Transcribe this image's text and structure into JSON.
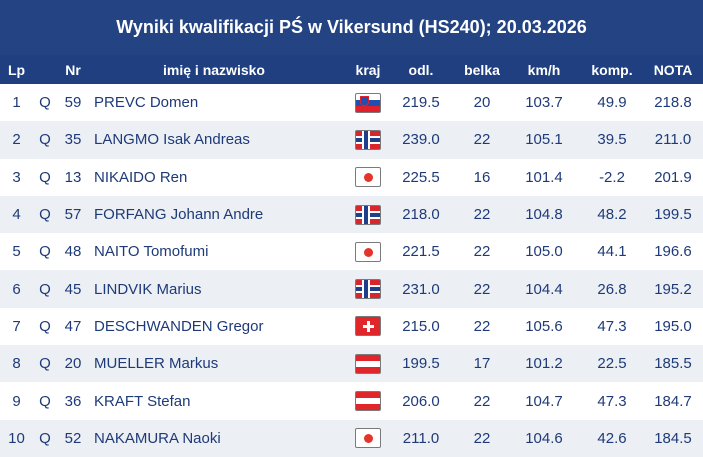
{
  "title": "Wyniki kwalifikacji PŚ w Vikersund (HS240); 20.03.2026",
  "headers": {
    "lp": "Lp",
    "nr": "Nr",
    "name": "imię i nazwisko",
    "country": "kraj",
    "distance": "odl.",
    "gate": "belka",
    "speed": "km/h",
    "compensation": "komp.",
    "nota": "NOTA"
  },
  "rows": [
    {
      "lp": "1",
      "q": "Q",
      "nr": "59",
      "name": "PREVC Domen",
      "flag": "slovenia-flag-icon",
      "dist": "219.5",
      "gate": "20",
      "speed": "103.7",
      "comp": "49.9",
      "nota": "218.8"
    },
    {
      "lp": "2",
      "q": "Q",
      "nr": "35",
      "name": "LANGMO Isak Andreas",
      "flag": "norway-flag-icon",
      "dist": "239.0",
      "gate": "22",
      "speed": "105.1",
      "comp": "39.5",
      "nota": "211.0"
    },
    {
      "lp": "3",
      "q": "Q",
      "nr": "13",
      "name": "NIKAIDO Ren",
      "flag": "japan-flag-icon",
      "dist": "225.5",
      "gate": "16",
      "speed": "101.4",
      "comp": "-2.2",
      "nota": "201.9"
    },
    {
      "lp": "4",
      "q": "Q",
      "nr": "57",
      "name": "FORFANG Johann Andre",
      "flag": "norway-flag-icon",
      "dist": "218.0",
      "gate": "22",
      "speed": "104.8",
      "comp": "48.2",
      "nota": "199.5"
    },
    {
      "lp": "5",
      "q": "Q",
      "nr": "48",
      "name": "NAITO Tomofumi",
      "flag": "japan-flag-icon",
      "dist": "221.5",
      "gate": "22",
      "speed": "105.0",
      "comp": "44.1",
      "nota": "196.6"
    },
    {
      "lp": "6",
      "q": "Q",
      "nr": "45",
      "name": "LINDVIK Marius",
      "flag": "norway-flag-icon",
      "dist": "231.0",
      "gate": "22",
      "speed": "104.4",
      "comp": "26.8",
      "nota": "195.2"
    },
    {
      "lp": "7",
      "q": "Q",
      "nr": "47",
      "name": "DESCHWANDEN Gregor",
      "flag": "switzerland-flag-icon",
      "dist": "215.0",
      "gate": "22",
      "speed": "105.6",
      "comp": "47.3",
      "nota": "195.0"
    },
    {
      "lp": "8",
      "q": "Q",
      "nr": "20",
      "name": "MUELLER Markus",
      "flag": "austria-flag-icon",
      "dist": "199.5",
      "gate": "17",
      "speed": "101.2",
      "comp": "22.5",
      "nota": "185.5"
    },
    {
      "lp": "9",
      "q": "Q",
      "nr": "36",
      "name": "KRAFT Stefan",
      "flag": "austria-flag-icon",
      "dist": "206.0",
      "gate": "22",
      "speed": "104.7",
      "comp": "47.3",
      "nota": "184.7"
    },
    {
      "lp": "10",
      "q": "Q",
      "nr": "52",
      "name": "NAKAMURA Naoki",
      "flag": "japan-flag-icon",
      "dist": "211.0",
      "gate": "22",
      "speed": "104.6",
      "comp": "42.6",
      "nota": "184.5"
    }
  ],
  "colors": {
    "header_bg": "#234383",
    "text": "#1e3a78",
    "stripe": "#eceff4"
  }
}
